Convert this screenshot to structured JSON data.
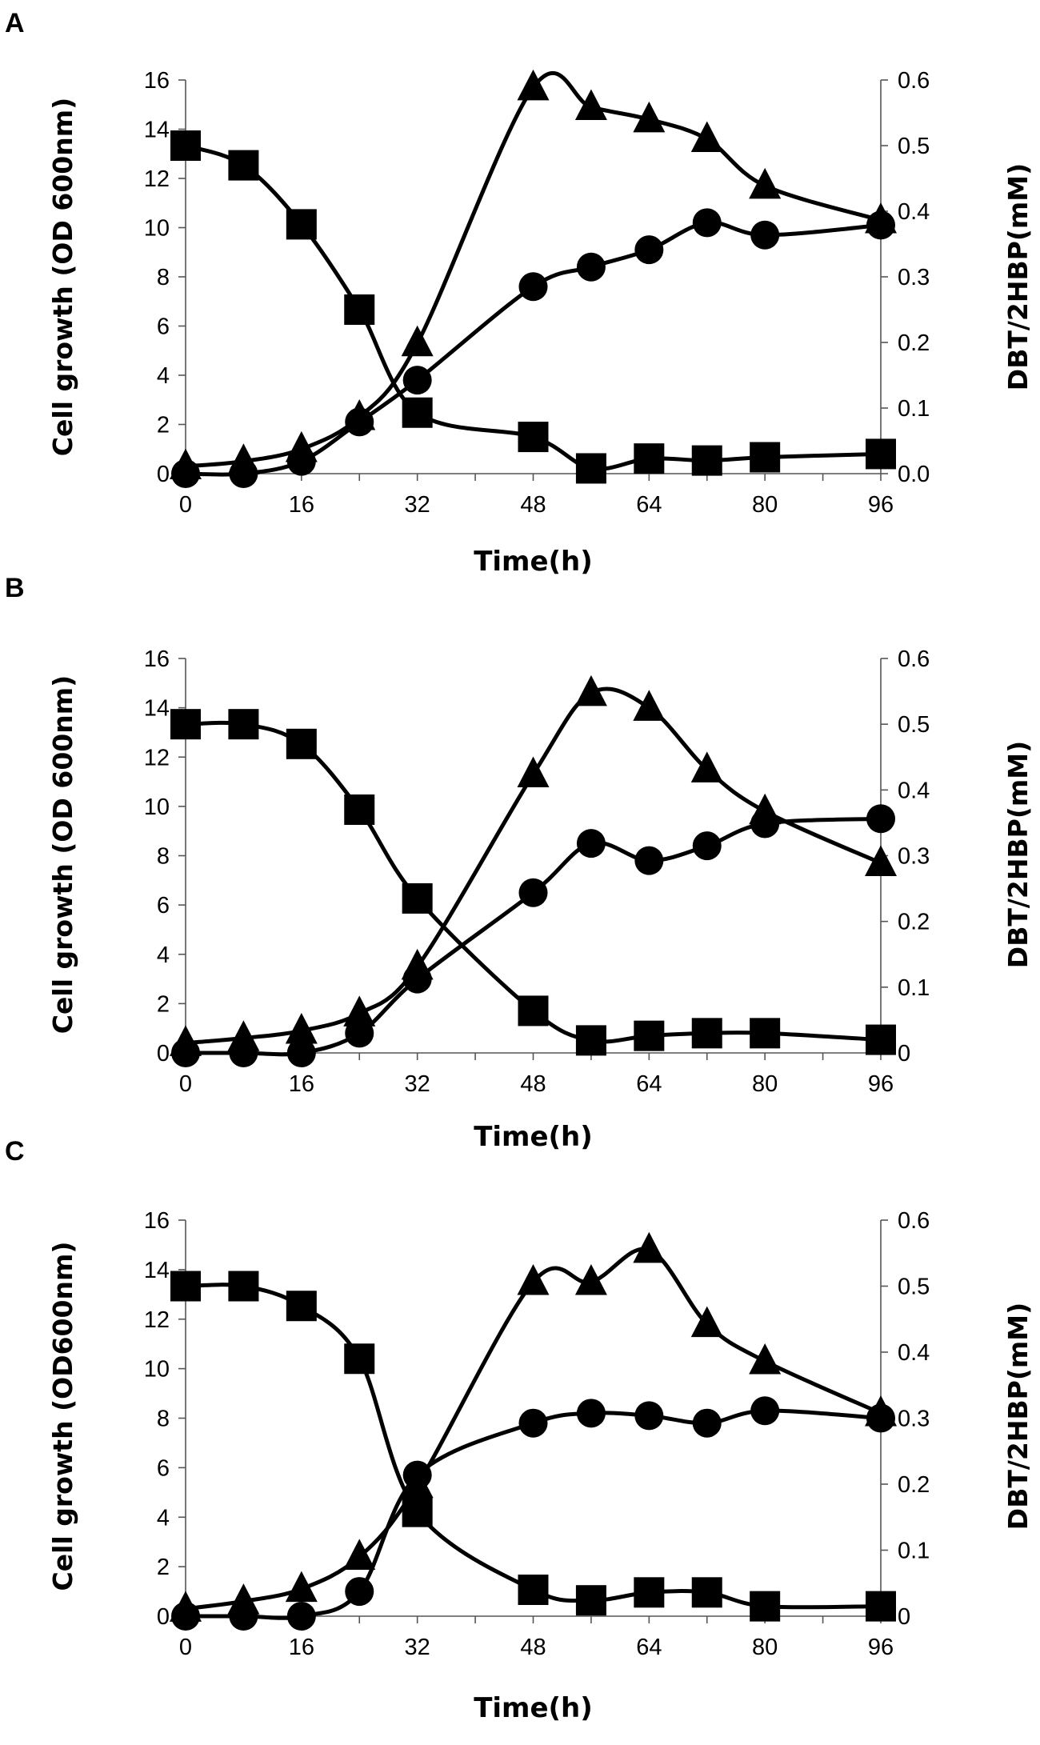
{
  "chart_data": [
    {
      "panel": "A",
      "type": "line",
      "xlabel": "Time(h)",
      "ylabel": "Cell growth (OD 600nm)",
      "y2label": "DBT/2HBP(mM)",
      "xlim": [
        0,
        96
      ],
      "xticks": [
        "0",
        "16",
        "32",
        "48",
        "64",
        "80",
        "96"
      ],
      "ylim": [
        0,
        16
      ],
      "yticks": [
        "0",
        "2",
        "4",
        "6",
        "8",
        "10",
        "12",
        "14",
        "16"
      ],
      "y2lim": [
        0,
        0.6
      ],
      "y2ticks": [
        "0.0",
        "0.1",
        "0.2",
        "0.3",
        "0.4",
        "0.5",
        "0.6"
      ],
      "series": [
        {
          "name": "square",
          "marker": "square",
          "axis": "y2",
          "x": [
            0,
            8,
            16,
            24,
            32,
            48,
            56,
            64,
            72,
            80,
            96
          ],
          "values": [
            0.5,
            0.47,
            0.38,
            0.25,
            0.093,
            0.056,
            0.008,
            0.023,
            0.02,
            0.025,
            0.03
          ]
        },
        {
          "name": "circle",
          "marker": "circle",
          "axis": "y",
          "x": [
            0,
            8,
            16,
            24,
            32,
            48,
            56,
            64,
            72,
            80,
            96
          ],
          "values": [
            0.0,
            0.0,
            0.5,
            2.1,
            3.8,
            7.6,
            8.4,
            9.1,
            10.2,
            9.7,
            10.1
          ]
        },
        {
          "name": "triangle",
          "marker": "triangle",
          "axis": "y",
          "x": [
            0,
            8,
            16,
            24,
            32,
            48,
            56,
            64,
            72,
            80,
            96
          ],
          "values": [
            0.3,
            0.5,
            1.0,
            2.3,
            5.3,
            15.7,
            14.9,
            14.4,
            13.6,
            11.7,
            10.3
          ]
        }
      ]
    },
    {
      "panel": "B",
      "type": "line",
      "xlabel": "Time(h)",
      "ylabel": "Cell growth (OD 600nm)",
      "y2label": "DBT/2HBP(mM)",
      "xlim": [
        0,
        96
      ],
      "xticks": [
        "0",
        "16",
        "32",
        "48",
        "64",
        "80",
        "96"
      ],
      "ylim": [
        0,
        16
      ],
      "yticks": [
        "0",
        "2",
        "4",
        "6",
        "8",
        "10",
        "12",
        "14",
        "16"
      ],
      "y2lim": [
        0,
        0.6
      ],
      "y2ticks": [
        "0",
        "0.1",
        "0.2",
        "0.3",
        "0.4",
        "0.5",
        "0.6"
      ],
      "series": [
        {
          "name": "square",
          "marker": "square",
          "axis": "y2",
          "x": [
            0,
            8,
            16,
            24,
            32,
            48,
            56,
            64,
            72,
            80,
            96
          ],
          "values": [
            0.5,
            0.5,
            0.47,
            0.37,
            0.235,
            0.064,
            0.019,
            0.026,
            0.03,
            0.03,
            0.02
          ]
        },
        {
          "name": "circle",
          "marker": "circle",
          "axis": "y",
          "x": [
            0,
            8,
            16,
            24,
            32,
            48,
            56,
            64,
            72,
            80,
            96
          ],
          "values": [
            0.0,
            0.0,
            0.0,
            0.8,
            3.0,
            6.5,
            8.5,
            7.8,
            8.4,
            9.3,
            9.5
          ]
        },
        {
          "name": "triangle",
          "marker": "triangle",
          "axis": "y",
          "x": [
            0,
            8,
            16,
            24,
            32,
            48,
            56,
            64,
            72,
            80,
            96
          ],
          "values": [
            0.4,
            0.6,
            0.9,
            1.6,
            3.5,
            11.3,
            14.6,
            14.0,
            11.5,
            9.8,
            7.7
          ]
        }
      ]
    },
    {
      "panel": "C",
      "type": "line",
      "xlabel": "Time(h)",
      "ylabel": "Cell growth (OD600nm)",
      "y2label": "DBT/2HBP(mM)",
      "xlim": [
        0,
        96
      ],
      "xticks": [
        "0",
        "16",
        "32",
        "48",
        "64",
        "80",
        "96"
      ],
      "ylim": [
        0,
        16
      ],
      "yticks": [
        "0",
        "2",
        "4",
        "6",
        "8",
        "10",
        "12",
        "14",
        "16"
      ],
      "y2lim": [
        0,
        0.6
      ],
      "y2ticks": [
        "0",
        "0.1",
        "0.2",
        "0.3",
        "0.4",
        "0.5",
        "0.6"
      ],
      "series": [
        {
          "name": "square",
          "marker": "square",
          "axis": "y2",
          "x": [
            0,
            8,
            16,
            24,
            32,
            48,
            56,
            64,
            72,
            80,
            96
          ],
          "values": [
            0.5,
            0.5,
            0.47,
            0.39,
            0.158,
            0.04,
            0.024,
            0.036,
            0.036,
            0.015,
            0.015
          ]
        },
        {
          "name": "circle",
          "marker": "circle",
          "axis": "y",
          "x": [
            0,
            8,
            16,
            24,
            32,
            48,
            56,
            64,
            72,
            80,
            96
          ],
          "values": [
            0.0,
            0.0,
            0.0,
            1.0,
            5.7,
            7.8,
            8.2,
            8.1,
            7.8,
            8.3,
            8.0
          ]
        },
        {
          "name": "triangle",
          "marker": "triangle",
          "axis": "y",
          "x": [
            0,
            8,
            16,
            24,
            32,
            48,
            56,
            64,
            72,
            80,
            96
          ],
          "values": [
            0.3,
            0.6,
            1.1,
            2.4,
            5.3,
            13.5,
            13.5,
            14.8,
            11.8,
            10.3,
            8.2
          ]
        }
      ]
    }
  ]
}
